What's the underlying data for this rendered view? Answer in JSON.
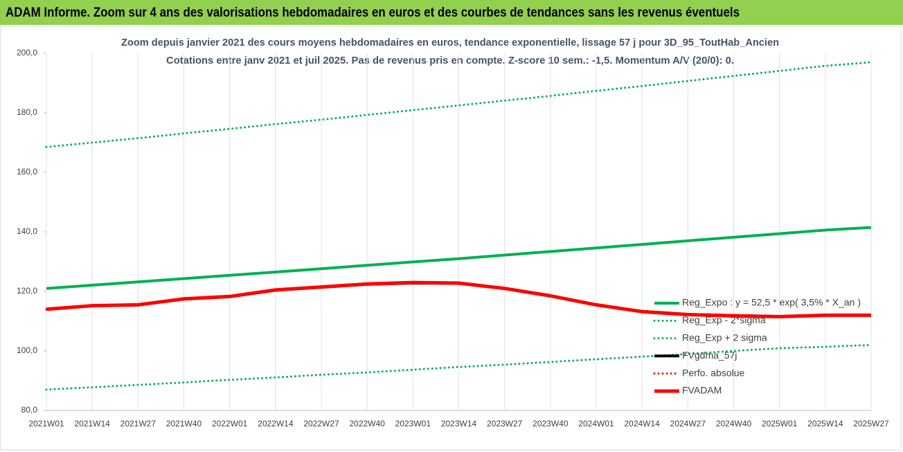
{
  "header": {
    "title": "ADAM Informe. Zoom sur 4 ans des valorisations hebdomadaires en euros et des courbes de tendances sans les revenus éventuels"
  },
  "chart_data": {
    "type": "line",
    "title": "Zoom depuis janvier 2021 des cours moyens hebdomadaires en euros, tendance exponentielle, lissage 57 j pour 3D_95_ToutHab_Ancien",
    "subtitle": "Cotations entre janv 2021 et juil 2025. Pas de revenus pris en compte. Z-score 10 sem.: -1,5. Momentum A/V (20/0): 0.",
    "categories": [
      "2021W01",
      "2021W14",
      "2021W27",
      "2021W40",
      "2022W01",
      "2022W14",
      "2022W27",
      "2022W40",
      "2023W01",
      "2023W14",
      "2023W27",
      "2023W40",
      "2024W01",
      "2024W14",
      "2024W27",
      "2024W40",
      "2025W01",
      "2025W14",
      "2025W27"
    ],
    "ylim": [
      80,
      200
    ],
    "yticks": [
      {
        "value": 80,
        "label": "80,0"
      },
      {
        "value": 100,
        "label": "100,0"
      },
      {
        "value": 120,
        "label": "120,0"
      },
      {
        "value": 140,
        "label": "140,0"
      },
      {
        "value": 160,
        "label": "160,0"
      },
      {
        "value": 180,
        "label": "180,0"
      },
      {
        "value": 200,
        "label": "200,0"
      }
    ],
    "xgrid": true,
    "legend": "lower right",
    "series": [
      {
        "name": "Reg_Expo : y = 52,5 * exp( 3,5% *  X_an )",
        "color": "#00b050",
        "style": "solid",
        "values": [
          121,
          122.1,
          123.2,
          124.3,
          125.4,
          126.5,
          127.6,
          128.8,
          129.9,
          131.0,
          132.2,
          133.4,
          134.6,
          135.8,
          137.0,
          138.2,
          139.4,
          140.6,
          141.5
        ]
      },
      {
        "name": "Reg_Exp - 2*sigma",
        "color": "#00b050",
        "style": "dotted",
        "values": [
          87,
          87.8,
          88.6,
          89.4,
          90.3,
          91.1,
          92.0,
          92.8,
          93.7,
          94.6,
          95.4,
          96.3,
          97.2,
          98.1,
          99.0,
          100.0,
          100.9,
          101.4,
          102
        ]
      },
      {
        "name": "Reg_Exp + 2 sigma",
        "color": "#00b050",
        "style": "dotted",
        "values": [
          168.5,
          170.0,
          171.5,
          173.1,
          174.6,
          176.2,
          177.7,
          179.3,
          180.9,
          182.5,
          184.1,
          185.7,
          187.4,
          189.0,
          190.7,
          192.4,
          194.1,
          195.8,
          197
        ]
      },
      {
        "name": "FVgdma_57j",
        "color": "#000000",
        "style": "solid",
        "values": [
          114,
          115.2,
          115.5,
          117.4,
          118.2,
          120.4,
          121.4,
          122.4,
          122.8,
          122.7,
          121,
          118.5,
          115.5,
          113.3,
          112.3,
          111.9,
          111.6,
          112,
          112
        ]
      },
      {
        "name": "Perfo. absolue",
        "color": "#ff0000",
        "style": "dotted",
        "values": [
          114,
          115.2,
          115.5,
          117.5,
          118.3,
          120.5,
          121.5,
          122.5,
          123,
          122.8,
          121,
          118.5,
          115.5,
          113.2,
          112.2,
          111.8,
          111.5,
          112,
          112
        ]
      },
      {
        "name": "FVADAM",
        "color": "#ff0000",
        "style": "thick",
        "values": [
          114,
          115.2,
          115.5,
          117.5,
          118.3,
          120.5,
          121.5,
          122.5,
          123,
          122.8,
          121,
          118.5,
          115.5,
          113.2,
          112.2,
          111.8,
          111.5,
          112,
          112
        ]
      }
    ]
  }
}
